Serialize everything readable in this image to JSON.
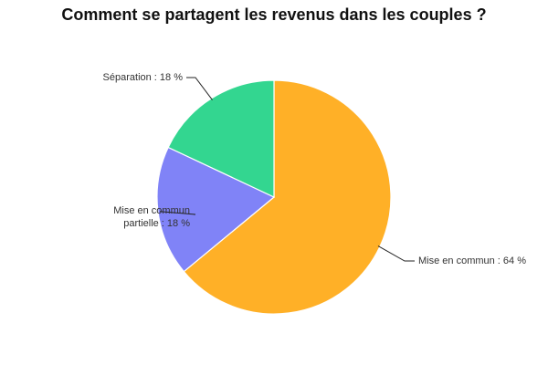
{
  "chart_data": {
    "type": "pie",
    "title": "Comment se partagent les revenus dans les couples ?",
    "slices": [
      {
        "label": "Mise en commun : 64 %",
        "lines": [
          "Mise en commun : 64 %"
        ],
        "value": 64,
        "color": "#ffb027"
      },
      {
        "label": "Mise en commun partielle : 18 %",
        "lines": [
          "Mise en commun",
          "partielle : 18 %"
        ],
        "value": 18,
        "color": "#8083f7"
      },
      {
        "label": "Séparation : 18 %",
        "lines": [
          "Séparation : 18 %"
        ],
        "value": 18,
        "color": "#33d690"
      }
    ]
  }
}
